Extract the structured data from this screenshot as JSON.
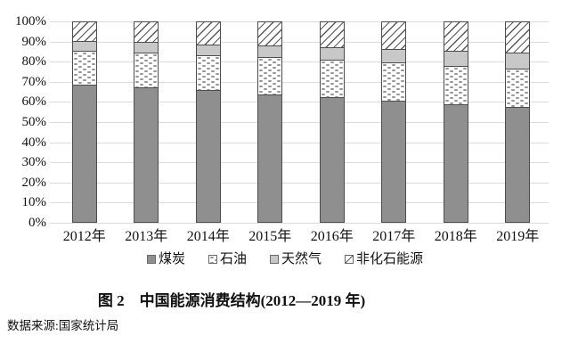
{
  "title": "图 2　中国能源消费结构(2012—2019 年)",
  "source": "数据来源:国家统计局",
  "colors": {
    "coal_fill": "#8f8f8f",
    "gas_fill": "#c8c8c8",
    "pattern_line": "#595959",
    "oil_dot": "#969696",
    "segment_border": "#4d4d4d",
    "gridline": "#dcdcdc",
    "text": "#111111",
    "background": "#ffffff"
  },
  "chart_data": {
    "type": "bar",
    "stacked": true,
    "title": "图 2　中国能源消费结构(2012—2019 年)",
    "xlabel": "",
    "ylabel": "",
    "ylim": [
      0,
      100
    ],
    "grid": true,
    "legend_position": "bottom",
    "y_tick_labels_top_to_bottom": [
      "100%",
      "90%",
      "80%",
      "70%",
      "60%",
      "50%",
      "40%",
      "30%",
      "20%",
      "10%",
      "0%"
    ],
    "categories": [
      "2012年",
      "2013年",
      "2014年",
      "2015年",
      "2016年",
      "2017年",
      "2018年",
      "2019年"
    ],
    "series": [
      {
        "name": "煤炭",
        "key": "coal",
        "pattern": "solid-dark-gray",
        "values": [
          68.5,
          67.4,
          65.8,
          63.8,
          62.2,
          60.6,
          59.0,
          57.7
        ]
      },
      {
        "name": "石油",
        "key": "oil",
        "pattern": "white-dotted",
        "values": [
          17.0,
          17.1,
          17.3,
          18.4,
          18.7,
          18.9,
          18.9,
          19.0
        ]
      },
      {
        "name": "天然气",
        "key": "gas",
        "pattern": "solid-light-gray",
        "values": [
          4.8,
          5.3,
          5.6,
          5.8,
          6.1,
          6.9,
          7.6,
          8.0
        ]
      },
      {
        "name": "非化石能源",
        "key": "nonfossil",
        "pattern": "diagonal-hatch",
        "values": [
          9.7,
          10.2,
          11.3,
          12.0,
          13.0,
          13.6,
          14.5,
          15.3
        ]
      }
    ]
  }
}
